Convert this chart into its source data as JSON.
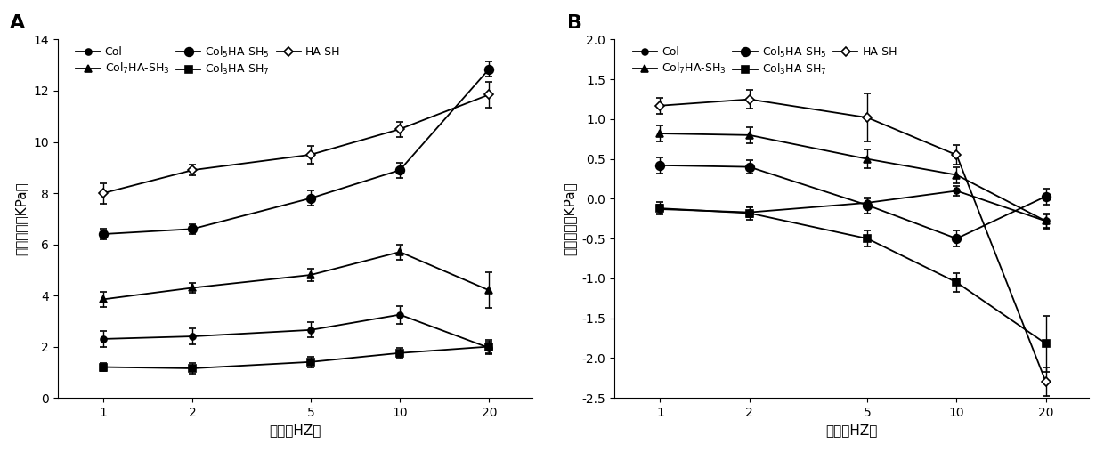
{
  "x": [
    1,
    2,
    5,
    10,
    20
  ],
  "panel_A": {
    "title": "A",
    "ylabel": "储能模量（KPa）",
    "xlabel": "频率（HZ）",
    "ylim": [
      0,
      14
    ],
    "yticks": [
      0,
      2,
      4,
      6,
      8,
      10,
      12,
      14
    ],
    "series": [
      {
        "label": "Col",
        "marker": "o",
        "markersize": 5,
        "markerfacecolor": "black",
        "markeredgecolor": "black",
        "y": [
          2.3,
          2.4,
          2.65,
          3.25,
          1.95
        ],
        "yerr": [
          0.3,
          0.3,
          0.3,
          0.35,
          0.25
        ]
      },
      {
        "label": "Col$_7$HA-SH$_3$",
        "marker": "^",
        "markersize": 6,
        "markerfacecolor": "black",
        "markeredgecolor": "black",
        "y": [
          3.85,
          4.3,
          4.8,
          5.7,
          4.2
        ],
        "yerr": [
          0.3,
          0.2,
          0.25,
          0.3,
          0.7
        ]
      },
      {
        "label": "Col$_5$HA-SH$_5$",
        "marker": "o",
        "markersize": 7,
        "markerfacecolor": "black",
        "markeredgecolor": "black",
        "y": [
          6.4,
          6.6,
          7.8,
          8.9,
          12.85
        ],
        "yerr": [
          0.2,
          0.2,
          0.3,
          0.3,
          0.3
        ]
      },
      {
        "label": "Col$_3$HA-SH$_7$",
        "marker": "s",
        "markersize": 6,
        "markerfacecolor": "black",
        "markeredgecolor": "black",
        "y": [
          1.2,
          1.15,
          1.4,
          1.75,
          2.0
        ],
        "yerr": [
          0.15,
          0.2,
          0.2,
          0.2,
          0.25
        ]
      },
      {
        "label": "HA-SH",
        "marker": "D",
        "markersize": 5,
        "markerfacecolor": "white",
        "markeredgecolor": "black",
        "y": [
          8.0,
          8.9,
          9.5,
          10.5,
          11.85
        ],
        "yerr": [
          0.4,
          0.2,
          0.35,
          0.3,
          0.5
        ]
      }
    ]
  },
  "panel_B": {
    "title": "B",
    "ylabel": "损耗模量（KPa）",
    "xlabel": "频率（HZ）",
    "ylim": [
      -2.5,
      2.0
    ],
    "yticks": [
      -2.5,
      -2.0,
      -1.5,
      -1.0,
      -0.5,
      0.0,
      0.5,
      1.0,
      1.5,
      2.0
    ],
    "series": [
      {
        "label": "Col",
        "marker": "o",
        "markersize": 5,
        "markerfacecolor": "black",
        "markeredgecolor": "black",
        "y": [
          -0.13,
          -0.17,
          -0.05,
          0.1,
          -0.28
        ],
        "yerr": [
          0.06,
          0.06,
          0.06,
          0.06,
          0.08
        ]
      },
      {
        "label": "Col$_7$HA-SH$_3$",
        "marker": "^",
        "markersize": 6,
        "markerfacecolor": "black",
        "markeredgecolor": "black",
        "y": [
          0.82,
          0.8,
          0.5,
          0.3,
          -0.28
        ],
        "yerr": [
          0.1,
          0.1,
          0.12,
          0.1,
          0.1
        ]
      },
      {
        "label": "Col$_5$HA-SH$_5$",
        "marker": "o",
        "markersize": 7,
        "markerfacecolor": "black",
        "markeredgecolor": "black",
        "y": [
          0.42,
          0.4,
          -0.08,
          -0.5,
          0.03
        ],
        "yerr": [
          0.1,
          0.08,
          0.1,
          0.1,
          0.1
        ]
      },
      {
        "label": "Col$_3$HA-SH$_7$",
        "marker": "s",
        "markersize": 6,
        "markerfacecolor": "black",
        "markeredgecolor": "black",
        "y": [
          -0.12,
          -0.18,
          -0.5,
          -1.05,
          -1.82
        ],
        "yerr": [
          0.08,
          0.08,
          0.1,
          0.12,
          0.35
        ]
      },
      {
        "label": "HA-SH",
        "marker": "D",
        "markersize": 5,
        "markerfacecolor": "white",
        "markeredgecolor": "black",
        "y": [
          1.17,
          1.25,
          1.02,
          0.55,
          -2.3
        ],
        "yerr": [
          0.1,
          0.12,
          0.3,
          0.12,
          0.18
        ]
      }
    ]
  },
  "line_color": "#000000",
  "bg_color": "#ffffff",
  "fontsize_label": 11,
  "fontsize_tick": 10,
  "fontsize_title": 16,
  "fontsize_legend": 9
}
